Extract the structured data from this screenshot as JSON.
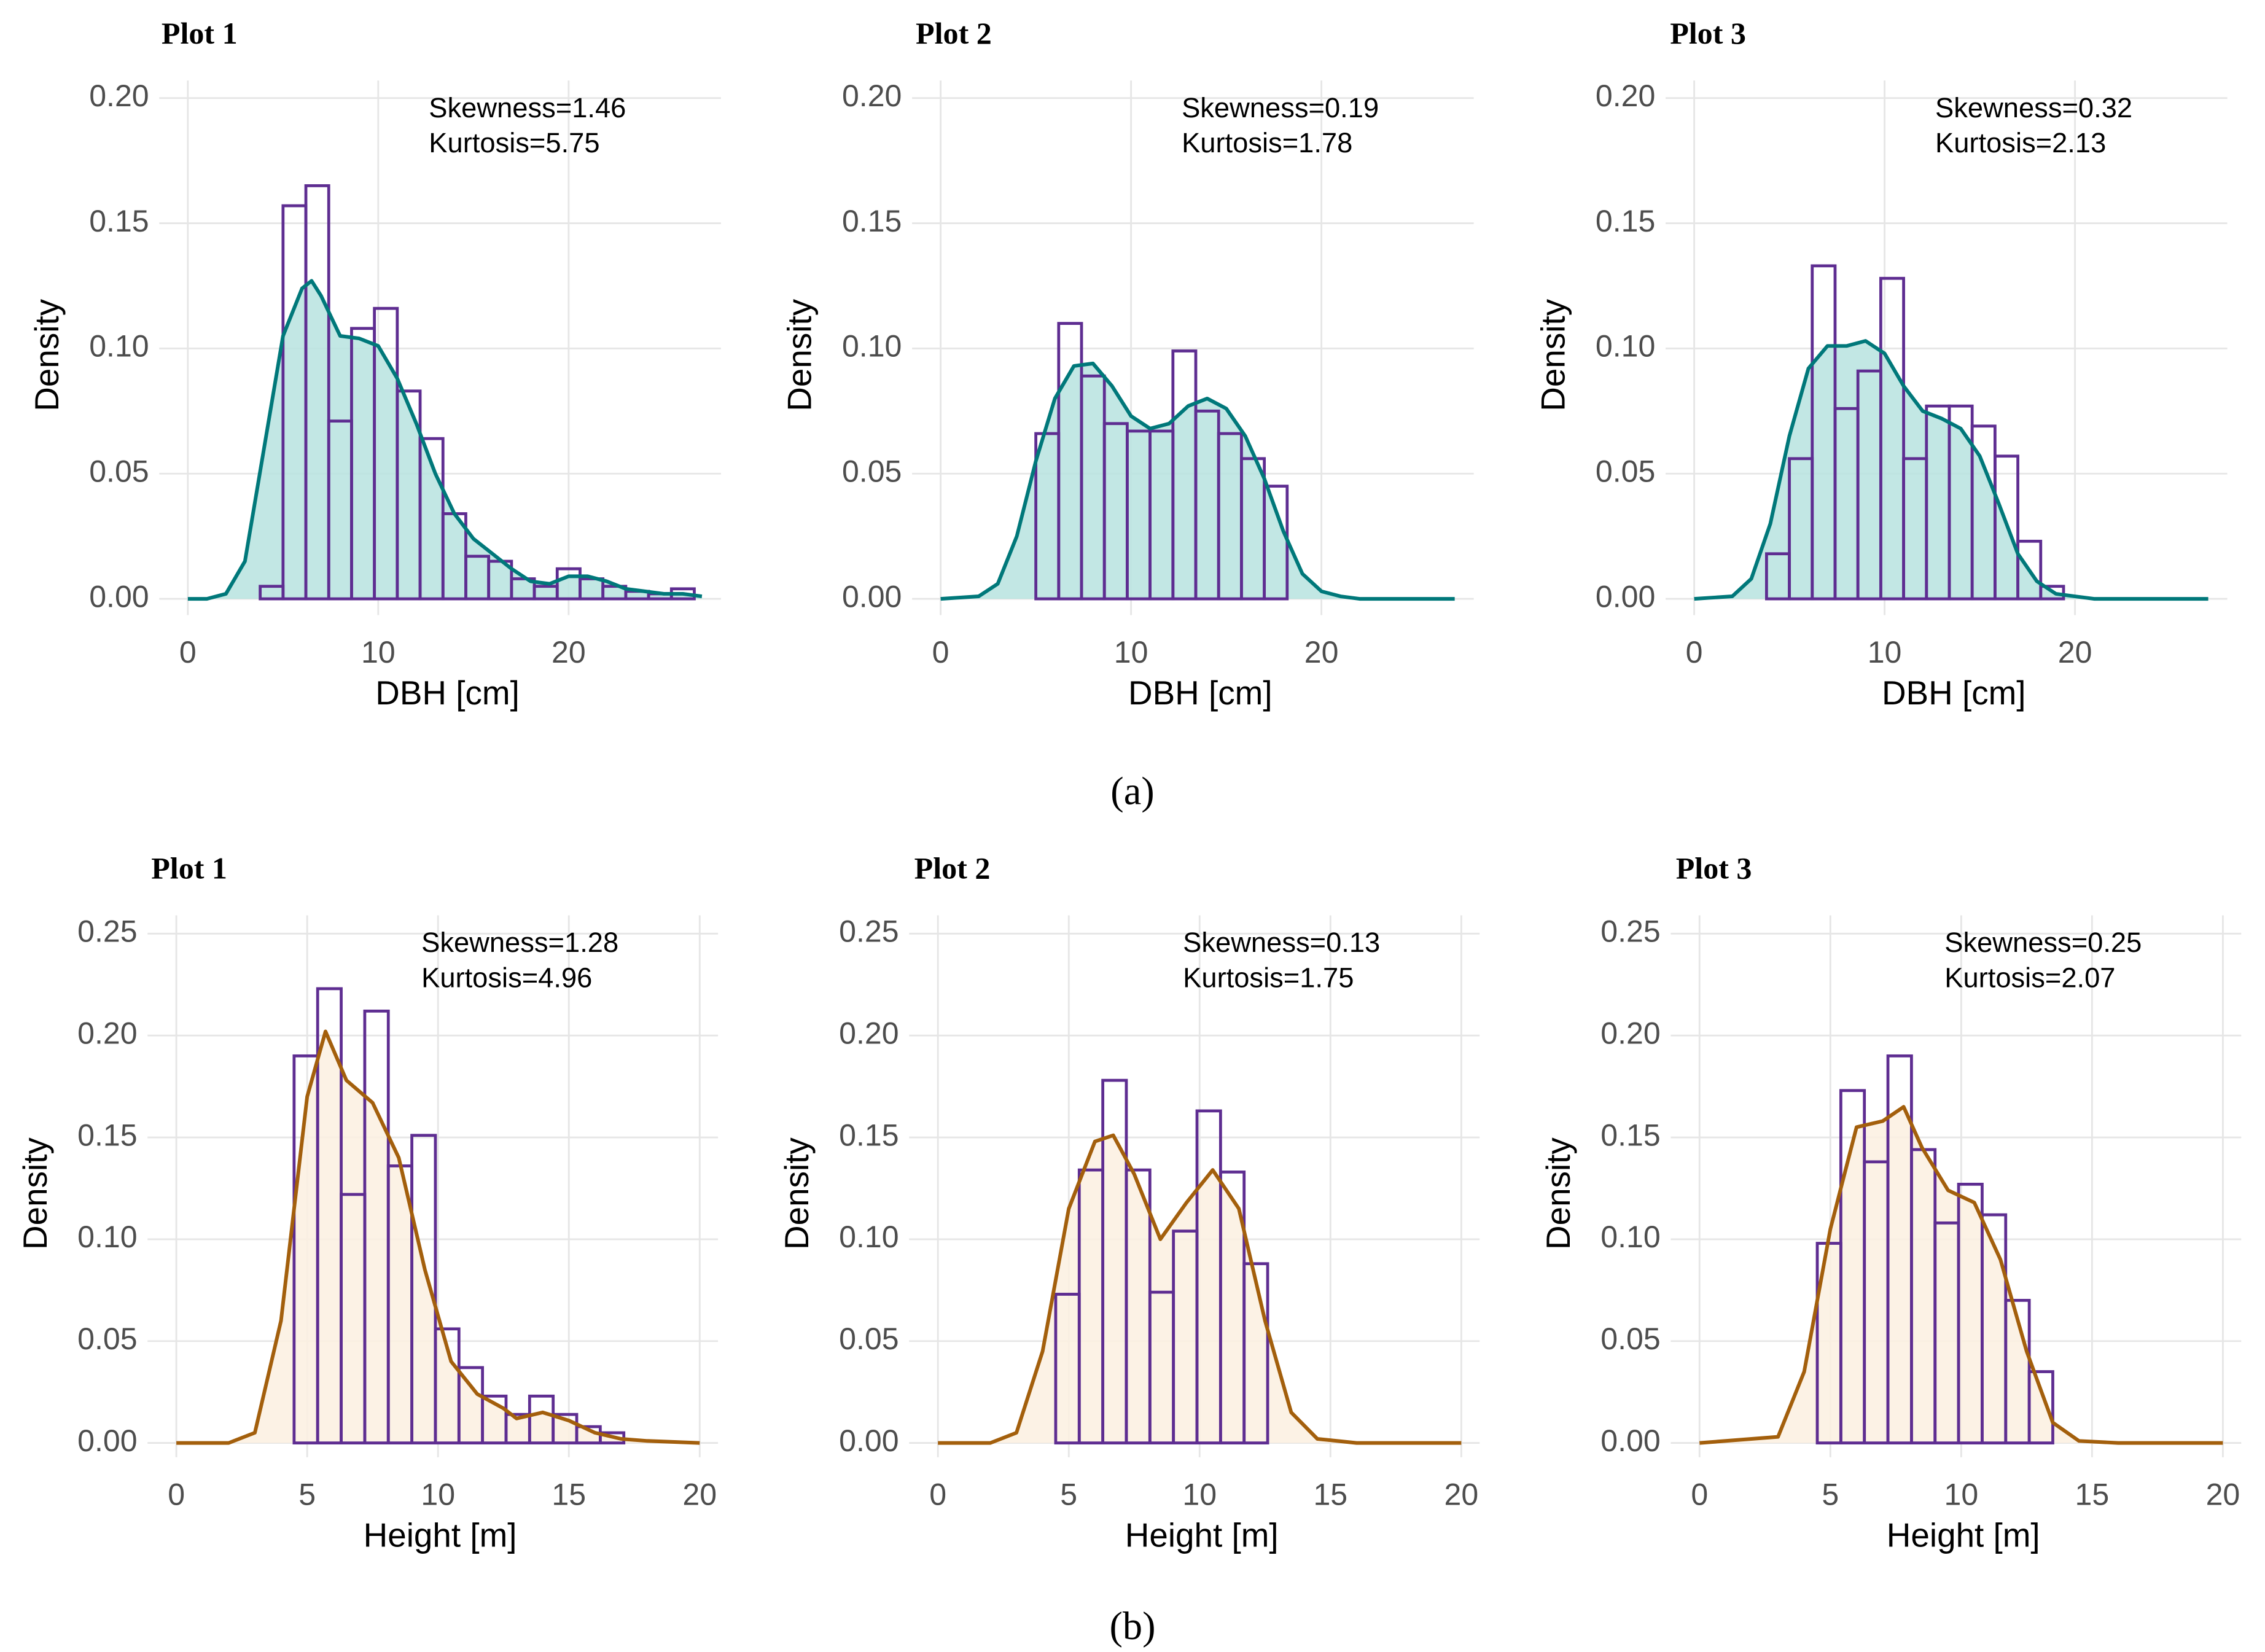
{
  "chart_data": [
    {
      "type": "histogram",
      "title": "Plot 1",
      "xlabel": "DBH [cm]",
      "ylabel": "Density",
      "annotations": [
        "Skewness=1.46",
        "Kurtosis=5.75"
      ],
      "bins": [
        3.8,
        5,
        6.2,
        7.4,
        8.6,
        9.8,
        11,
        12.2,
        13.4,
        14.6,
        15.8,
        17,
        18.2,
        19.4,
        20.6,
        21.8,
        23,
        24.2,
        25.4,
        26.6
      ],
      "values": [
        0.005,
        0.157,
        0.165,
        0.071,
        0.108,
        0.116,
        0.083,
        0.064,
        0.034,
        0.017,
        0.015,
        0.008,
        0.005,
        0.012,
        0.008,
        0.005,
        0.003,
        0.002,
        0.004
      ],
      "bar_color": "#5e2d91",
      "density": {
        "x": [
          0,
          1,
          2,
          3,
          4,
          5,
          6,
          6.5,
          7,
          8,
          9,
          10,
          11,
          12,
          13,
          14,
          15,
          16,
          17,
          18,
          19,
          20,
          21,
          22,
          23,
          24,
          25,
          26,
          27
        ],
        "values": [
          0,
          0,
          0.002,
          0.015,
          0.06,
          0.105,
          0.124,
          0.127,
          0.121,
          0.105,
          0.104,
          0.101,
          0.088,
          0.07,
          0.05,
          0.034,
          0.024,
          0.018,
          0.012,
          0.007,
          0.006,
          0.009,
          0.009,
          0.007,
          0.004,
          0.003,
          0.002,
          0.002,
          0.001
        ]
      },
      "density_color": "#00787a",
      "fill_color": "#b7e3df",
      "xlim": [
        -1.5,
        28
      ],
      "ylim": [
        -0.0065,
        0.207
      ],
      "xticks": [
        0,
        10,
        20
      ],
      "yticks": [
        {
          "value": 0,
          "label": "0.00"
        },
        {
          "value": 0.05,
          "label": "0.05"
        },
        {
          "value": 0.1,
          "label": "0.10"
        },
        {
          "value": 0.15,
          "label": "0.15"
        },
        {
          "value": 0.2,
          "label": "0.20"
        }
      ],
      "grid": true
    },
    {
      "type": "histogram",
      "title": "Plot 2",
      "xlabel": "DBH [cm]",
      "ylabel": "Density",
      "annotations": [
        "Skewness=0.19",
        "Kurtosis=1.78"
      ],
      "bins": [
        5,
        6.2,
        7.4,
        8.6,
        9.8,
        11,
        12.2,
        13.4,
        14.6,
        15.8,
        17,
        18.2
      ],
      "values": [
        0.066,
        0.11,
        0.089,
        0.07,
        0.067,
        0.067,
        0.099,
        0.075,
        0.066,
        0.056,
        0.045
      ],
      "bar_color": "#5e2d91",
      "density": {
        "x": [
          0,
          2,
          3,
          4,
          5,
          6,
          7,
          8,
          9,
          10,
          11,
          12,
          13,
          14,
          15,
          16,
          17,
          18,
          19,
          20,
          21,
          22,
          27
        ],
        "values": [
          0,
          0.001,
          0.006,
          0.025,
          0.055,
          0.08,
          0.093,
          0.094,
          0.085,
          0.073,
          0.068,
          0.07,
          0.077,
          0.08,
          0.076,
          0.065,
          0.048,
          0.027,
          0.01,
          0.003,
          0.001,
          0,
          0
        ]
      },
      "density_color": "#00787a",
      "fill_color": "#b7e3df",
      "xlim": [
        -1.5,
        28
      ],
      "ylim": [
        -0.0065,
        0.207
      ],
      "xticks": [
        0,
        10,
        20
      ],
      "yticks": [
        {
          "value": 0,
          "label": "0.00"
        },
        {
          "value": 0.05,
          "label": "0.05"
        },
        {
          "value": 0.1,
          "label": "0.10"
        },
        {
          "value": 0.15,
          "label": "0.15"
        },
        {
          "value": 0.2,
          "label": "0.20"
        }
      ],
      "grid": true
    },
    {
      "type": "histogram",
      "title": "Plot 3",
      "xlabel": "DBH [cm]",
      "ylabel": "Density",
      "annotations": [
        "Skewness=0.32",
        "Kurtosis=2.13"
      ],
      "bins": [
        3.8,
        5,
        6.2,
        7.4,
        8.6,
        9.8,
        11,
        12.2,
        13.4,
        14.6,
        15.8,
        17,
        18.2,
        19.4
      ],
      "values": [
        0.018,
        0.056,
        0.133,
        0.076,
        0.091,
        0.128,
        0.056,
        0.077,
        0.077,
        0.069,
        0.057,
        0.023,
        0.005
      ],
      "bar_color": "#5e2d91",
      "density": {
        "x": [
          0,
          2,
          3,
          4,
          5,
          6,
          7,
          8,
          9,
          10,
          11,
          12,
          13,
          14,
          15,
          16,
          17,
          18,
          19,
          20,
          21,
          27
        ],
        "values": [
          0,
          0.001,
          0.008,
          0.03,
          0.065,
          0.092,
          0.101,
          0.101,
          0.103,
          0.098,
          0.085,
          0.075,
          0.072,
          0.068,
          0.057,
          0.038,
          0.018,
          0.007,
          0.002,
          0.001,
          0,
          0
        ]
      },
      "density_color": "#00787a",
      "fill_color": "#b7e3df",
      "xlim": [
        -1.5,
        28
      ],
      "ylim": [
        -0.0065,
        0.207
      ],
      "xticks": [
        0,
        10,
        20
      ],
      "yticks": [
        {
          "value": 0,
          "label": "0.00"
        },
        {
          "value": 0.05,
          "label": "0.05"
        },
        {
          "value": 0.1,
          "label": "0.10"
        },
        {
          "value": 0.15,
          "label": "0.15"
        },
        {
          "value": 0.2,
          "label": "0.20"
        }
      ],
      "grid": true
    },
    {
      "type": "histogram",
      "title": "Plot 1",
      "xlabel": "Height [m]",
      "ylabel": "Density",
      "annotations": [
        "Skewness=1.28",
        "Kurtosis=4.96"
      ],
      "bins": [
        4.5,
        5.4,
        6.3,
        7.2,
        8.1,
        9,
        9.9,
        10.8,
        11.7,
        12.6,
        13.5,
        14.4,
        15.3,
        16.2,
        17.1
      ],
      "values": [
        0.19,
        0.223,
        0.122,
        0.212,
        0.136,
        0.151,
        0.056,
        0.037,
        0.023,
        0.014,
        0.023,
        0.014,
        0.008,
        0.005
      ],
      "bar_color": "#5e2d91",
      "density": {
        "x": [
          0,
          2,
          3,
          4,
          5,
          5.7,
          6.5,
          7.5,
          8.5,
          9.5,
          10.5,
          11.5,
          12.5,
          13,
          14,
          15,
          16,
          17,
          18,
          20
        ],
        "values": [
          0,
          0,
          0.005,
          0.06,
          0.17,
          0.202,
          0.178,
          0.167,
          0.14,
          0.085,
          0.04,
          0.024,
          0.017,
          0.012,
          0.015,
          0.011,
          0.005,
          0.002,
          0.001,
          0
        ]
      },
      "density_color": "#a35f0c",
      "fill_color": "#fcf0e1",
      "xlim": [
        -1.1,
        20.7
      ],
      "ylim": [
        -0.007,
        0.259
      ],
      "xticks": [
        0,
        5,
        10,
        15,
        20
      ],
      "yticks": [
        {
          "value": 0,
          "label": "0.00"
        },
        {
          "value": 0.05,
          "label": "0.05"
        },
        {
          "value": 0.1,
          "label": "0.10"
        },
        {
          "value": 0.15,
          "label": "0.15"
        },
        {
          "value": 0.2,
          "label": "0.20"
        },
        {
          "value": 0.25,
          "label": "0.25"
        }
      ],
      "grid": true
    },
    {
      "type": "histogram",
      "title": "Plot 2",
      "xlabel": "Height [m]",
      "ylabel": "Density",
      "annotations": [
        "Skewness=0.13",
        "Kurtosis=1.75"
      ],
      "bins": [
        4.5,
        5.4,
        6.3,
        7.2,
        8.1,
        9,
        9.9,
        10.8,
        11.7,
        12.6
      ],
      "values": [
        0.073,
        0.134,
        0.178,
        0.134,
        0.074,
        0.104,
        0.163,
        0.133,
        0.088
      ],
      "bar_color": "#5e2d91",
      "density": {
        "x": [
          0,
          2,
          3,
          4,
          5,
          6,
          6.7,
          7.5,
          8.5,
          9.5,
          10.5,
          11.5,
          12.5,
          13.5,
          14.5,
          16,
          20
        ],
        "values": [
          0,
          0,
          0.005,
          0.045,
          0.115,
          0.148,
          0.151,
          0.132,
          0.1,
          0.118,
          0.134,
          0.115,
          0.06,
          0.015,
          0.002,
          0,
          0
        ]
      },
      "density_color": "#a35f0c",
      "fill_color": "#fcf0e1",
      "xlim": [
        -1.1,
        20.7
      ],
      "ylim": [
        -0.007,
        0.259
      ],
      "xticks": [
        0,
        5,
        10,
        15,
        20
      ],
      "yticks": [
        {
          "value": 0,
          "label": "0.00"
        },
        {
          "value": 0.05,
          "label": "0.05"
        },
        {
          "value": 0.1,
          "label": "0.10"
        },
        {
          "value": 0.15,
          "label": "0.15"
        },
        {
          "value": 0.2,
          "label": "0.20"
        },
        {
          "value": 0.25,
          "label": "0.25"
        }
      ],
      "grid": true
    },
    {
      "type": "histogram",
      "title": "Plot 3",
      "xlabel": "Height [m]",
      "ylabel": "Density",
      "annotations": [
        "Skewness=0.25",
        "Kurtosis=2.07"
      ],
      "bins": [
        4.5,
        5.4,
        6.3,
        7.2,
        8.1,
        9,
        9.9,
        10.8,
        11.7,
        12.6,
        13.5
      ],
      "values": [
        0.098,
        0.173,
        0.138,
        0.19,
        0.144,
        0.108,
        0.127,
        0.112,
        0.07,
        0.035
      ],
      "bar_color": "#5e2d91",
      "density": {
        "x": [
          0,
          3,
          4,
          5,
          6,
          7,
          7.8,
          8.5,
          9.5,
          10.5,
          11.5,
          12.5,
          13.5,
          14.5,
          16,
          20
        ],
        "values": [
          0,
          0.003,
          0.035,
          0.105,
          0.155,
          0.158,
          0.165,
          0.145,
          0.124,
          0.118,
          0.09,
          0.045,
          0.01,
          0.001,
          0,
          0
        ]
      },
      "density_color": "#a35f0c",
      "fill_color": "#fcf0e1",
      "xlim": [
        -1.1,
        20.7
      ],
      "ylim": [
        -0.007,
        0.259
      ],
      "xticks": [
        0,
        5,
        10,
        15,
        20
      ],
      "yticks": [
        {
          "value": 0,
          "label": "0.00"
        },
        {
          "value": 0.05,
          "label": "0.05"
        },
        {
          "value": 0.1,
          "label": "0.10"
        },
        {
          "value": 0.15,
          "label": "0.15"
        },
        {
          "value": 0.2,
          "label": "0.20"
        },
        {
          "value": 0.25,
          "label": "0.25"
        }
      ],
      "grid": true
    }
  ],
  "panel_labels": [
    "(a)",
    "(b)"
  ]
}
